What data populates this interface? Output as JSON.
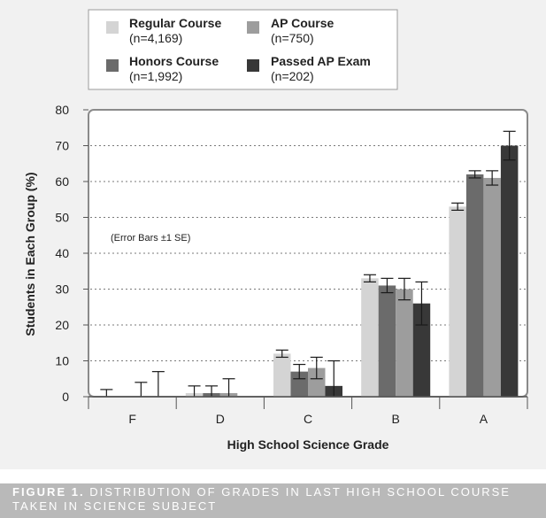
{
  "caption": {
    "lead": "FIGURE 1.",
    "text": "DISTRIBUTION OF GRADES IN LAST HIGH SCHOOL COURSE TAKEN IN SCIENCE SUBJECT"
  },
  "legend": [
    {
      "name": "Regular Course",
      "sub": "(n=4,169)",
      "color": "#d4d4d4"
    },
    {
      "name": "AP Course",
      "sub": "(n=750)",
      "color": "#9d9d9d"
    },
    {
      "name": "Honors Course",
      "sub": "(n=1,992)",
      "color": "#6b6b6b"
    },
    {
      "name": "Passed AP Exam",
      "sub": "(n=202)",
      "color": "#383838"
    }
  ],
  "chart_data": {
    "type": "bar",
    "title": "",
    "xlabel": "High School Science Grade",
    "ylabel": "Students in Each Group (%)",
    "note": "(Error Bars ±1 SE)",
    "categories": [
      "F",
      "D",
      "C",
      "B",
      "A"
    ],
    "ylim": [
      0,
      80
    ],
    "yticks": [
      0,
      10,
      20,
      30,
      40,
      50,
      60,
      70,
      80
    ],
    "grid": "horizontal dotted",
    "legend_position": "top",
    "series": [
      {
        "name": "Regular Course",
        "color": "#d4d4d4",
        "values": [
          0,
          1,
          12,
          33,
          53
        ],
        "errors": [
          [
            0,
            2
          ],
          [
            0,
            3
          ],
          [
            11,
            13
          ],
          [
            32,
            34
          ],
          [
            52,
            54
          ]
        ]
      },
      {
        "name": "Honors Course",
        "color": "#6b6b6b",
        "values": [
          0,
          1,
          7,
          31,
          62
        ],
        "errors": [
          [
            0,
            0
          ],
          [
            0,
            3
          ],
          [
            5,
            9
          ],
          [
            29,
            33
          ],
          [
            61,
            63
          ]
        ]
      },
      {
        "name": "AP Course",
        "color": "#9d9d9d",
        "values": [
          0,
          1,
          8,
          30,
          61
        ],
        "errors": [
          [
            0,
            4
          ],
          [
            0,
            5
          ],
          [
            5,
            11
          ],
          [
            27,
            33
          ],
          [
            59,
            63
          ]
        ]
      },
      {
        "name": "Passed AP Exam",
        "color": "#383838",
        "values": [
          0,
          0,
          3,
          26,
          70
        ],
        "errors": [
          [
            0,
            7
          ],
          [
            0,
            0
          ],
          [
            0,
            10
          ],
          [
            20,
            32
          ],
          [
            66,
            74
          ]
        ]
      }
    ]
  }
}
